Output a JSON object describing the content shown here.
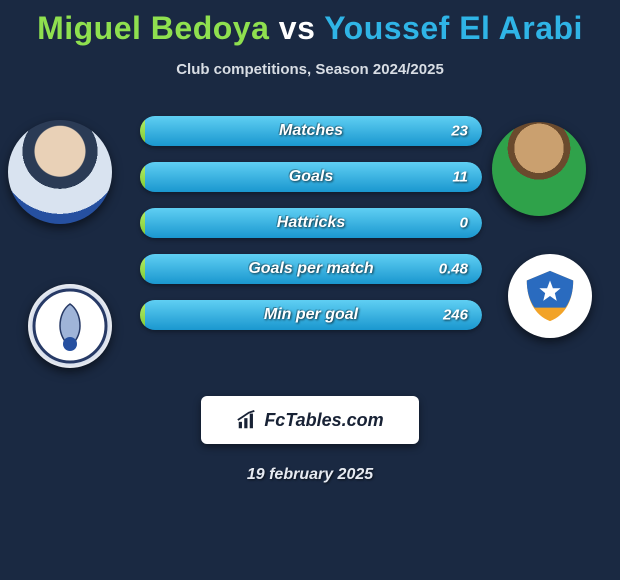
{
  "title": {
    "player1": "Miguel Bedoya",
    "vs": "vs",
    "player2": "Youssef El Arabi"
  },
  "subtitle": "Club competitions, Season 2024/2025",
  "colors": {
    "player1": "#8fe04f",
    "player2": "#2fb4e6",
    "background": "#1a2942",
    "bar_track": "#2b3b55"
  },
  "stats": [
    {
      "label": "Matches",
      "value_right": "23",
      "left_pct": 1.5,
      "right_pct": 98.5
    },
    {
      "label": "Goals",
      "value_right": "11",
      "left_pct": 1.5,
      "right_pct": 98.5
    },
    {
      "label": "Hattricks",
      "value_right": "0",
      "left_pct": 1.5,
      "right_pct": 98.5
    },
    {
      "label": "Goals per match",
      "value_right": "0.48",
      "left_pct": 1.5,
      "right_pct": 98.5
    },
    {
      "label": "Min per goal",
      "value_right": "246",
      "left_pct": 1.5,
      "right_pct": 98.5
    }
  ],
  "branding": "FcTables.com",
  "date": "19 february 2025",
  "badge_right_colors": {
    "top": "#2a6bbf",
    "bottom": "#f2a328"
  }
}
